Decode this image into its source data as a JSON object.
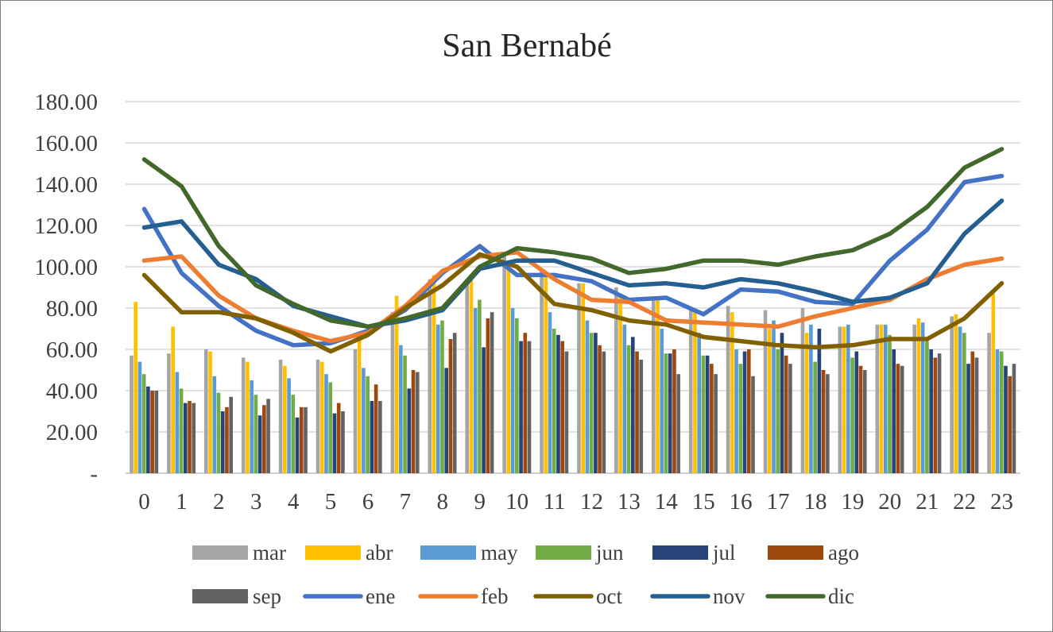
{
  "chart_data": {
    "type": "bar+line",
    "title": "San Bernabé",
    "categories": [
      "0",
      "1",
      "2",
      "3",
      "4",
      "5",
      "6",
      "7",
      "8",
      "9",
      "10",
      "11",
      "12",
      "13",
      "14",
      "15",
      "16",
      "17",
      "18",
      "19",
      "20",
      "21",
      "22",
      "23"
    ],
    "ylim": [
      0,
      180
    ],
    "yticks": [
      {
        "value": 0,
        "label": "-"
      },
      {
        "value": 20,
        "label": "20.00"
      },
      {
        "value": 40,
        "label": "40.00"
      },
      {
        "value": 60,
        "label": "60.00"
      },
      {
        "value": 80,
        "label": "80.00"
      },
      {
        "value": 100,
        "label": "100.00"
      },
      {
        "value": 120,
        "label": "120.00"
      },
      {
        "value": 140,
        "label": "140.00"
      },
      {
        "value": 160,
        "label": "160.00"
      },
      {
        "value": 180,
        "label": "180.00"
      }
    ],
    "grid": true,
    "legend_position": "bottom",
    "bar_series": [
      {
        "name": "mar",
        "color": "#a5a5a5",
        "values": [
          57,
          58,
          60,
          56,
          55,
          55,
          60,
          78,
          94,
          93,
          105,
          98,
          92,
          90,
          85,
          80,
          81,
          79,
          80,
          71,
          72,
          72,
          76,
          68
        ]
      },
      {
        "name": "abr",
        "color": "#ffc000",
        "values": [
          83,
          71,
          59,
          54,
          52,
          54,
          65,
          86,
          96,
          94,
          100,
          96,
          92,
          87,
          85,
          78,
          78,
          70,
          68,
          71,
          72,
          75,
          77,
          87
        ]
      },
      {
        "name": "may",
        "color": "#5b9bd5",
        "values": [
          54,
          49,
          47,
          45,
          46,
          48,
          51,
          62,
          72,
          80,
          80,
          78,
          74,
          72,
          70,
          68,
          60,
          74,
          72,
          72,
          72,
          73,
          71,
          60
        ]
      },
      {
        "name": "jun",
        "color": "#70ad47",
        "values": [
          48,
          41,
          39,
          38,
          38,
          44,
          47,
          57,
          74,
          84,
          75,
          70,
          68,
          62,
          58,
          57,
          53,
          60,
          54,
          56,
          67,
          65,
          68,
          59
        ]
      },
      {
        "name": "jul",
        "color": "#264478",
        "values": [
          42,
          34,
          30,
          28,
          27,
          29,
          35,
          41,
          51,
          61,
          64,
          67,
          68,
          66,
          58,
          57,
          59,
          68,
          70,
          59,
          60,
          60,
          53,
          52
        ]
      },
      {
        "name": "ago",
        "color": "#9e480e",
        "values": [
          40,
          35,
          32,
          33,
          32,
          34,
          43,
          50,
          65,
          75,
          68,
          64,
          62,
          59,
          60,
          53,
          60,
          57,
          50,
          52,
          53,
          56,
          59,
          47
        ]
      },
      {
        "name": "sep",
        "color": "#636363",
        "values": [
          40,
          34,
          37,
          36,
          32,
          30,
          35,
          49,
          68,
          78,
          64,
          59,
          59,
          55,
          48,
          48,
          47,
          53,
          48,
          50,
          52,
          58,
          56,
          53
        ]
      }
    ],
    "line_series": [
      {
        "name": "ene",
        "color": "#4472c4",
        "values": [
          128,
          97,
          81,
          69,
          62,
          63,
          69,
          79,
          97,
          110,
          96,
          96,
          93,
          84,
          85,
          77,
          89,
          88,
          83,
          82,
          103,
          118,
          141,
          144
        ]
      },
      {
        "name": "feb",
        "color": "#ed7d31",
        "values": [
          103,
          105,
          86,
          75,
          69,
          64,
          68,
          81,
          98,
          105,
          107,
          94,
          84,
          83,
          74,
          73,
          72,
          71,
          76,
          80,
          84,
          94,
          101,
          104
        ]
      },
      {
        "name": "oct",
        "color": "#806000",
        "values": [
          96,
          78,
          78,
          75,
          68,
          59,
          67,
          80,
          91,
          106,
          100,
          82,
          79,
          74,
          72,
          66,
          64,
          62,
          61,
          62,
          65,
          65,
          75,
          92
        ]
      },
      {
        "name": "nov",
        "color": "#255e91",
        "values": [
          119,
          122,
          101,
          94,
          81,
          76,
          71,
          74,
          79,
          99,
          103,
          103,
          97,
          91,
          92,
          90,
          94,
          92,
          88,
          83,
          85,
          92,
          116,
          132
        ]
      },
      {
        "name": "dic",
        "color": "#43682b",
        "values": [
          152,
          139,
          110,
          91,
          82,
          74,
          71,
          75,
          80,
          100,
          109,
          107,
          104,
          97,
          99,
          103,
          103,
          101,
          105,
          108,
          116,
          129,
          148,
          157
        ]
      }
    ],
    "legend": [
      {
        "name": "mar",
        "kind": "bar",
        "color": "#a5a5a5"
      },
      {
        "name": "abr",
        "kind": "bar",
        "color": "#ffc000"
      },
      {
        "name": "may",
        "kind": "bar",
        "color": "#5b9bd5"
      },
      {
        "name": "jun",
        "kind": "bar",
        "color": "#70ad47"
      },
      {
        "name": "jul",
        "kind": "bar",
        "color": "#264478"
      },
      {
        "name": "ago",
        "kind": "bar",
        "color": "#9e480e"
      },
      {
        "name": "sep",
        "kind": "bar",
        "color": "#636363"
      },
      {
        "name": "ene",
        "kind": "line",
        "color": "#4472c4"
      },
      {
        "name": "feb",
        "kind": "line",
        "color": "#ed7d31"
      },
      {
        "name": "oct",
        "kind": "line",
        "color": "#806000"
      },
      {
        "name": "nov",
        "kind": "line",
        "color": "#255e91"
      },
      {
        "name": "dic",
        "kind": "line",
        "color": "#43682b"
      }
    ]
  }
}
